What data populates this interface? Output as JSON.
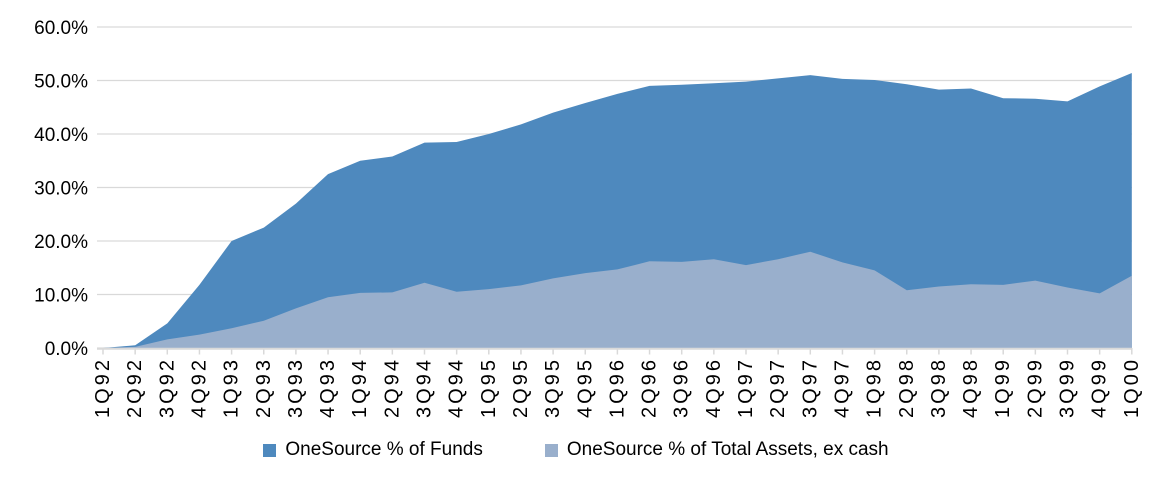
{
  "chart_data": {
    "type": "area",
    "title": "",
    "xlabel": "",
    "ylabel": "",
    "ylim": [
      0,
      60
    ],
    "y_tick_step": 10,
    "y_tick_labels": [
      "0.0%",
      "10.0%",
      "20.0%",
      "30.0%",
      "40.0%",
      "50.0%",
      "60.0%"
    ],
    "grid": true,
    "legend_position": "bottom",
    "gridline_color": "#D9D9D9",
    "axis_text_color": "#000000",
    "categories": [
      "1Q92",
      "2Q92",
      "3Q92",
      "4Q92",
      "1Q93",
      "2Q93",
      "3Q93",
      "4Q93",
      "1Q94",
      "2Q94",
      "3Q94",
      "4Q94",
      "1Q95",
      "2Q95",
      "3Q95",
      "4Q95",
      "1Q96",
      "2Q96",
      "3Q96",
      "4Q96",
      "1Q97",
      "2Q97",
      "3Q97",
      "4Q97",
      "1Q98",
      "2Q98",
      "3Q98",
      "4Q98",
      "1Q99",
      "2Q99",
      "3Q99",
      "4Q99",
      "1Q00"
    ],
    "series": [
      {
        "name": "OneSource % of Funds",
        "color": "#4E89BE",
        "values": [
          0,
          0.5,
          4.6,
          11.8,
          20.0,
          22.5,
          27.0,
          32.5,
          35.0,
          35.8,
          38.4,
          38.5,
          40.0,
          41.8,
          44.0,
          45.8,
          47.5,
          49.0,
          49.2,
          49.5,
          49.8,
          50.4,
          51.0,
          50.3,
          50.1,
          49.3,
          48.3,
          48.5,
          46.7,
          46.6,
          46.1,
          48.9,
          51.4
        ]
      },
      {
        "name": "OneSource % of Total Assets, ex cash",
        "color": "#99AFCC",
        "values": [
          0,
          0.2,
          1.6,
          2.5,
          3.7,
          5.1,
          7.4,
          9.5,
          10.3,
          10.4,
          12.2,
          10.5,
          11.0,
          11.7,
          13.0,
          14.0,
          14.7,
          16.2,
          16.1,
          16.6,
          15.5,
          16.6,
          18.0,
          16.0,
          14.5,
          10.8,
          11.5,
          11.9,
          11.8,
          12.6,
          11.3,
          10.2,
          13.5
        ]
      }
    ]
  }
}
